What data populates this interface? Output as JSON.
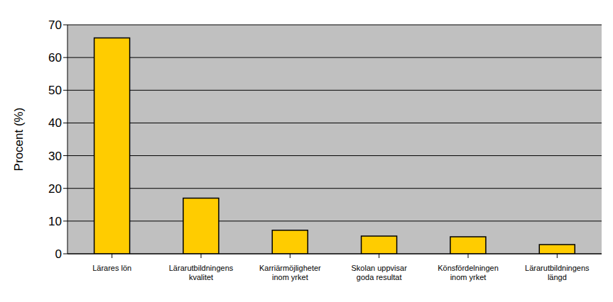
{
  "chart_data": {
    "type": "bar",
    "ylabel": "Procent (%)",
    "categories": [
      "Lärares lön",
      "Lärarutbildningens kvalitet",
      "Karriärmöjligheter inom yrket",
      "Skolan uppvisar goda resultat",
      "Könsfördelningen inom yrket",
      "Lärarutbildningens längd"
    ],
    "values": [
      66,
      17,
      7.2,
      5.4,
      5.2,
      2.8
    ],
    "color": "#ffcc00",
    "ylim": [
      0,
      70
    ],
    "yticks": [
      0,
      10,
      20,
      30,
      40,
      50,
      60,
      70
    ],
    "grid": true
  }
}
